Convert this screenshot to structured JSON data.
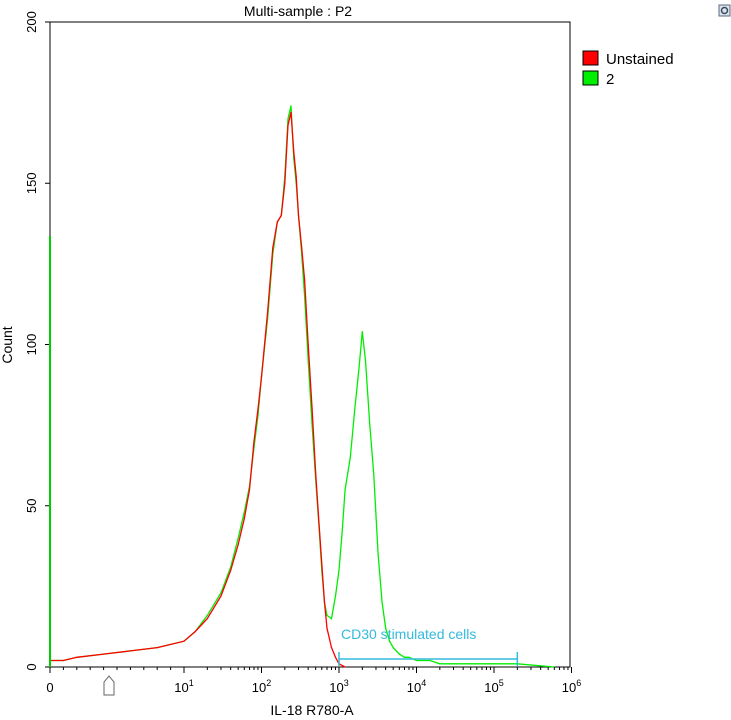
{
  "chart_data": {
    "type": "line",
    "title": "Multi-sample : P2",
    "xlabel": "IL-18 R780-A",
    "ylabel": "Count",
    "x_scale": "biexponential",
    "xlim": [
      0,
      1000000
    ],
    "ylim": [
      0,
      200
    ],
    "x_ticks": [
      {
        "value": 0,
        "label": "0",
        "exp": ""
      },
      {
        "value": 10,
        "label": "10",
        "exp": "1"
      },
      {
        "value": 100,
        "label": "10",
        "exp": "2"
      },
      {
        "value": 1000,
        "label": "10",
        "exp": "3"
      },
      {
        "value": 10000,
        "label": "10",
        "exp": "4"
      },
      {
        "value": 100000,
        "label": "10",
        "exp": "5"
      },
      {
        "value": 1000000,
        "label": "10",
        "exp": "6"
      }
    ],
    "y_ticks": [
      0,
      50,
      100,
      150,
      200
    ],
    "legend_position": "right",
    "series": [
      {
        "name": "Unstained",
        "color": "#ff0000",
        "x": [
          0,
          1,
          2,
          4,
          6,
          8,
          10,
          14,
          20,
          30,
          40,
          50,
          60,
          70,
          80,
          90,
          100,
          120,
          140,
          160,
          180,
          200,
          220,
          240,
          260,
          280,
          300,
          330,
          360,
          400,
          450,
          500,
          550,
          600,
          650,
          700,
          800,
          900,
          1000,
          1200
        ],
        "values": [
          2,
          2,
          3,
          4,
          5,
          6,
          8,
          11,
          15,
          22,
          30,
          38,
          46,
          55,
          70,
          80,
          90,
          110,
          130,
          138,
          140,
          150,
          168,
          172,
          160,
          152,
          140,
          130,
          120,
          100,
          80,
          60,
          45,
          32,
          20,
          12,
          6,
          3,
          1,
          0
        ]
      },
      {
        "name": "2",
        "color": "#00ee00",
        "x": [
          0,
          1,
          2,
          4,
          6,
          8,
          10,
          14,
          20,
          30,
          40,
          50,
          60,
          70,
          80,
          90,
          100,
          120,
          140,
          160,
          180,
          200,
          220,
          240,
          260,
          280,
          300,
          330,
          360,
          400,
          450,
          500,
          550,
          600,
          650,
          700,
          800,
          900,
          1000,
          1100,
          1200,
          1400,
          1600,
          1800,
          2000,
          2200,
          2500,
          2800,
          3200,
          3600,
          4000,
          4500,
          5000,
          6000,
          7000,
          8000,
          10000,
          15000,
          20000,
          30000,
          50000,
          100000,
          200000,
          600000
        ],
        "values": [
          2,
          2,
          3,
          4,
          5,
          6,
          8,
          11,
          16,
          23,
          31,
          40,
          48,
          56,
          68,
          78,
          90,
          108,
          128,
          138,
          140,
          152,
          170,
          174,
          158,
          150,
          140,
          128,
          115,
          95,
          75,
          58,
          44,
          30,
          20,
          16,
          15,
          22,
          30,
          42,
          55,
          65,
          80,
          92,
          104,
          95,
          75,
          60,
          35,
          20,
          12,
          8,
          6,
          4,
          3,
          3,
          2,
          2,
          1,
          1,
          1,
          1,
          1,
          0
        ]
      }
    ],
    "annotations": [
      {
        "type": "gate",
        "label": "CD30 stimulated cells",
        "x_start": 1000,
        "x_end": 200000,
        "y": 3,
        "color": "#33bbdd"
      }
    ]
  }
}
